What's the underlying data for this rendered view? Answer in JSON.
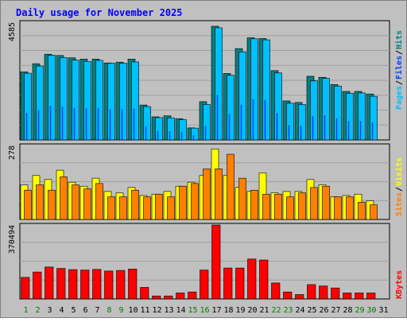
{
  "title": "Daily usage for November 2025",
  "colors": {
    "background": "#c0c0c0",
    "panel_bg": "#c0c0c0",
    "title_color": "#0000ff",
    "pages": "#00c0ff",
    "files": "#0040ff",
    "hits": "#008080",
    "visits": "#ffff00",
    "sites": "#ff8000",
    "kbytes": "#ff0000",
    "weekend_day": "#008000",
    "weekday": "#000000"
  },
  "chart_data": [
    {
      "type": "bar",
      "panel": "hits_files_pages",
      "ymax_label": "4585",
      "ylim": [
        0,
        4585
      ],
      "side_labels": [
        "Pages",
        "Files",
        "Hits"
      ],
      "categories": [
        "1",
        "2",
        "3",
        "4",
        "5",
        "6",
        "7",
        "8",
        "9",
        "10",
        "11",
        "12",
        "13",
        "14",
        "15",
        "16",
        "17",
        "18",
        "19",
        "20",
        "21",
        "22",
        "23",
        "24",
        "25",
        "26",
        "27",
        "28",
        "29",
        "30",
        "31"
      ],
      "series": [
        {
          "name": "Hits",
          "values": [
            2650,
            2970,
            3340,
            3290,
            3200,
            3150,
            3150,
            3000,
            3030,
            3150,
            1360,
            900,
            940,
            830,
            470,
            1490,
            4430,
            2590,
            3560,
            3980,
            3950,
            2700,
            1520,
            1460,
            2480,
            2440,
            2160,
            1890,
            1890,
            1790,
            0
          ]
        },
        {
          "name": "Pages",
          "values": [
            2600,
            2880,
            3300,
            3210,
            3110,
            3060,
            3100,
            2990,
            2990,
            3040,
            1300,
            870,
            860,
            790,
            460,
            1380,
            4370,
            2520,
            3430,
            3940,
            3900,
            2610,
            1430,
            1380,
            2300,
            2400,
            2100,
            1820,
            1830,
            1700,
            0
          ]
        },
        {
          "name": "Files",
          "values": [
            1050,
            1160,
            1330,
            1290,
            1250,
            1230,
            1240,
            1200,
            1200,
            1220,
            520,
            350,
            340,
            320,
            180,
            550,
            1750,
            1010,
            1370,
            1580,
            1560,
            1040,
            570,
            550,
            920,
            960,
            840,
            730,
            730,
            680,
            0
          ]
        }
      ]
    },
    {
      "type": "bar",
      "panel": "visits_sites",
      "ymax_label": "278",
      "ylim": [
        0,
        278
      ],
      "side_labels": [
        "Sites",
        "Visits"
      ],
      "categories": [
        "1",
        "2",
        "3",
        "4",
        "5",
        "6",
        "7",
        "8",
        "9",
        "10",
        "11",
        "12",
        "13",
        "14",
        "15",
        "16",
        "17",
        "18",
        "19",
        "20",
        "21",
        "22",
        "23",
        "24",
        "25",
        "26",
        "27",
        "28",
        "29",
        "30",
        "31"
      ],
      "series": [
        {
          "name": "Visits",
          "values": [
            130,
            165,
            150,
            185,
            140,
            125,
            155,
            105,
            100,
            120,
            90,
            95,
            105,
            125,
            140,
            165,
            265,
            165,
            120,
            105,
            175,
            100,
            105,
            105,
            150,
            130,
            85,
            90,
            95,
            70,
            0
          ]
        },
        {
          "name": "Sites",
          "values": [
            110,
            130,
            110,
            160,
            130,
            115,
            135,
            85,
            85,
            110,
            85,
            95,
            85,
            125,
            135,
            190,
            190,
            245,
            155,
            110,
            95,
            95,
            85,
            100,
            120,
            125,
            85,
            85,
            65,
            55,
            0
          ]
        }
      ]
    },
    {
      "type": "bar",
      "panel": "kbytes",
      "ymax_label": "370494",
      "ylim": [
        0,
        370494
      ],
      "side_labels": [
        "KBytes"
      ],
      "categories": [
        "1",
        "2",
        "3",
        "4",
        "5",
        "6",
        "7",
        "8",
        "9",
        "10",
        "11",
        "12",
        "13",
        "14",
        "15",
        "16",
        "17",
        "18",
        "19",
        "20",
        "21",
        "22",
        "23",
        "24",
        "25",
        "26",
        "27",
        "28",
        "29",
        "30",
        "31"
      ],
      "series": [
        {
          "name": "KBytes",
          "values": [
            108000,
            135000,
            160000,
            153000,
            147000,
            145000,
            148000,
            140000,
            143000,
            150000,
            58000,
            15000,
            15000,
            30000,
            35000,
            145000,
            370494,
            155000,
            155000,
            200000,
            195000,
            80000,
            35000,
            22000,
            72000,
            65000,
            55000,
            30000,
            30000,
            30000,
            0
          ]
        }
      ]
    }
  ],
  "x_labels": [
    "1",
    "2",
    "3",
    "4",
    "5",
    "6",
    "7",
    "8",
    "9",
    "10",
    "11",
    "12",
    "13",
    "14",
    "15",
    "16",
    "17",
    "18",
    "19",
    "20",
    "21",
    "22",
    "23",
    "24",
    "25",
    "26",
    "27",
    "28",
    "29",
    "30",
    "31"
  ],
  "weekend_days": [
    "1",
    "2",
    "8",
    "9",
    "15",
    "16",
    "22",
    "23",
    "29",
    "30"
  ]
}
